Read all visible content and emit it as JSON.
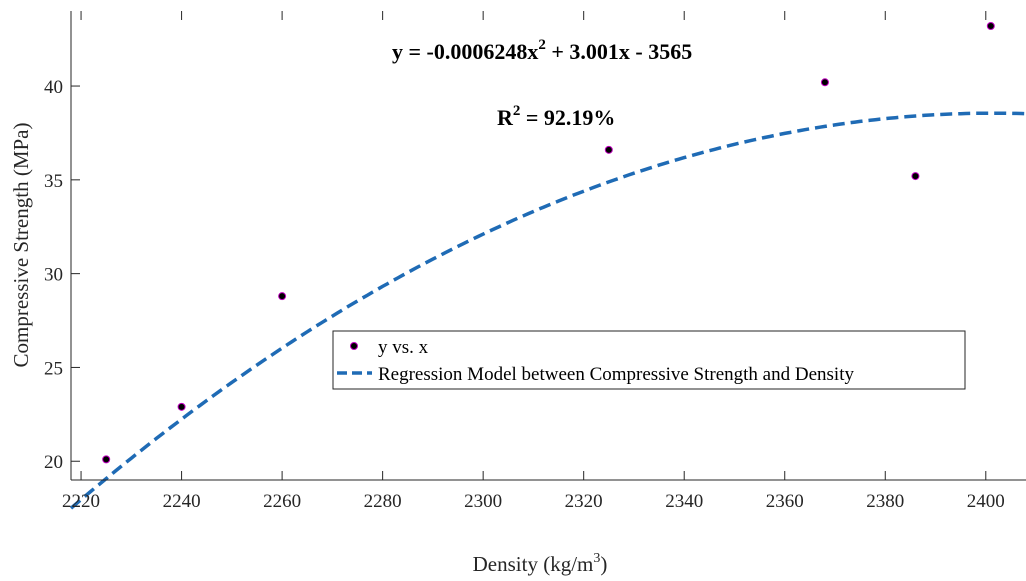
{
  "chart_data": {
    "type": "scatter",
    "xlabel": "Density (kg/m",
    "xlabel_sup": "3",
    "xlabel_tail": ")",
    "ylabel": "Compressive Strength (MPa)",
    "xlim": [
      2218,
      2408
    ],
    "ylim": [
      19,
      44
    ],
    "xticks": [
      2220,
      2240,
      2260,
      2280,
      2300,
      2320,
      2340,
      2360,
      2380,
      2400
    ],
    "yticks": [
      20,
      25,
      30,
      35,
      40
    ],
    "grid": false,
    "legend_position": "center",
    "series": [
      {
        "name": "y vs. x",
        "kind": "scatter",
        "x": [
          2225,
          2240,
          2260,
          2325,
          2368,
          2386,
          2401
        ],
        "y": [
          20.1,
          22.9,
          28.8,
          36.6,
          40.2,
          35.2,
          43.2
        ]
      },
      {
        "name": "Regression Model between Compressive Strength and Density",
        "kind": "line",
        "coefficients": {
          "a": -0.0006248,
          "b": 3.001,
          "c": -3565
        }
      }
    ],
    "annotations": {
      "equation_main": "y = -0.0006248x",
      "equation_sup": "2",
      "equation_tail": " + 3.001x - 3565",
      "r2_main": "R",
      "r2_sup": "2",
      "r2_tail": " = 92.19%"
    },
    "colors": {
      "marker_fill": "#000000",
      "marker_edge": "#c000c0",
      "fit_line": "#1f6bb5"
    }
  }
}
